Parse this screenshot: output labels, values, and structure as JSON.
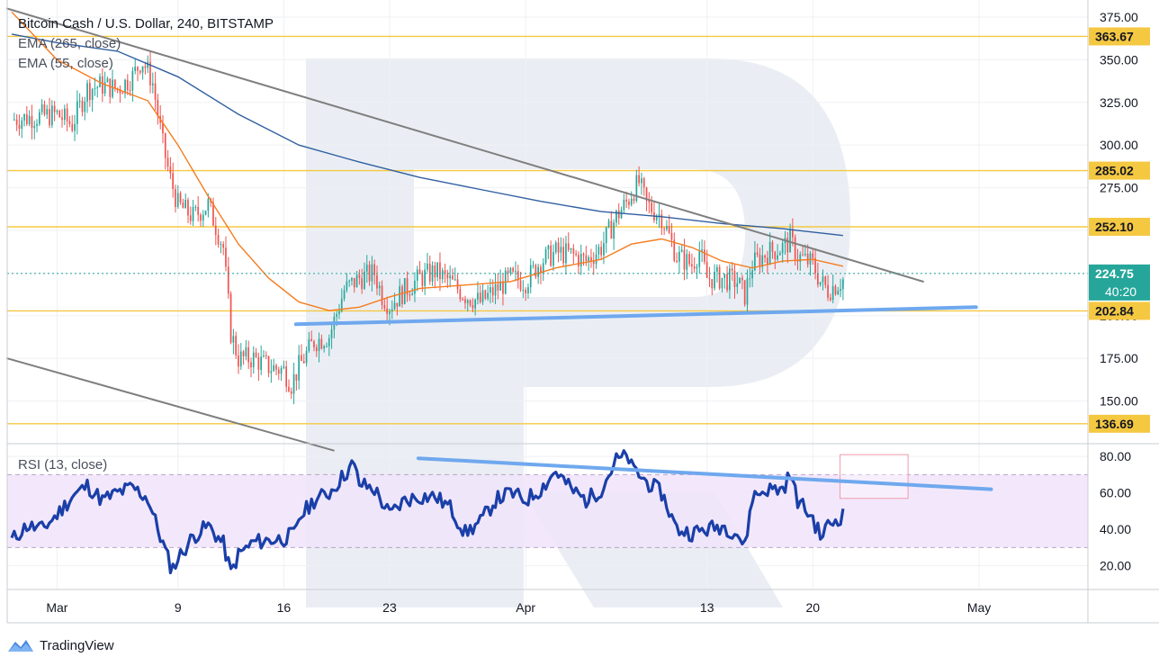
{
  "legend": {
    "title": "Bitcoin Cash / U.S. Dollar, 240, BITSTAMP",
    "ema_slow": "EMA (265, close)",
    "ema_fast": "EMA (55, close)",
    "rsi": "RSI (13, close)"
  },
  "brand": {
    "name": "TradingView"
  },
  "colors": {
    "up": "#26a69a",
    "down": "#ef5350",
    "ema_fast": "#f57c1f",
    "ema_slow": "#2f5fa0",
    "level": "#f5c842",
    "trend": "#7f7f7f",
    "support": "#6fa8ee",
    "rsi": "#1a3fa8",
    "rsi_band": "#f1e4fa",
    "price_tag": "#26a69a",
    "watermark": "#e6ebf2"
  },
  "chart_data": [
    {
      "type": "candlestick",
      "title": "Bitcoin Cash / U.S. Dollar, 240, BITSTAMP",
      "ylim": [
        125,
        385
      ],
      "y_ticks": [
        150,
        175,
        200,
        225,
        250,
        275,
        300,
        325,
        350,
        375
      ],
      "y_tick_labels": [
        "150.00",
        "175.00",
        "200.00",
        "225.00",
        "250.00",
        "275.00",
        "300.00",
        "325.00",
        "350.00",
        "375.00"
      ],
      "x_ticks": [
        {
          "day": 0,
          "label": "Mar"
        },
        {
          "day": 8,
          "label": "9"
        },
        {
          "day": 15,
          "label": "16"
        },
        {
          "day": 22,
          "label": "23"
        },
        {
          "day": 31,
          "label": "Apr"
        },
        {
          "day": 43,
          "label": "13"
        },
        {
          "day": 50,
          "label": "20"
        },
        {
          "day": 61,
          "label": "May"
        }
      ],
      "xlim": [
        -3.3,
        68.2
      ],
      "close_path": [
        [
          -3,
          315
        ],
        [
          0,
          318
        ],
        [
          1,
          312
        ],
        [
          2,
          333
        ],
        [
          3,
          335
        ],
        [
          4,
          333
        ],
        [
          5,
          340
        ],
        [
          5.6,
          350
        ],
        [
          6.3,
          338
        ],
        [
          7,
          300
        ],
        [
          7.5,
          280
        ],
        [
          8,
          265
        ],
        [
          9,
          258
        ],
        [
          10,
          265
        ],
        [
          11,
          240
        ],
        [
          11.5,
          190
        ],
        [
          12,
          175
        ],
        [
          13,
          175
        ],
        [
          14,
          170
        ],
        [
          15,
          168
        ],
        [
          15.5,
          160
        ],
        [
          16,
          170
        ],
        [
          17,
          185
        ],
        [
          18,
          188
        ],
        [
          19,
          215
        ],
        [
          20,
          222
        ],
        [
          21,
          225
        ],
        [
          21.5,
          212
        ],
        [
          22,
          206
        ],
        [
          23,
          215
        ],
        [
          24,
          222
        ],
        [
          25,
          226
        ],
        [
          26,
          220
        ],
        [
          27,
          212
        ],
        [
          28,
          208
        ],
        [
          29,
          215
        ],
        [
          30,
          222
        ],
        [
          31,
          220
        ],
        [
          32,
          232
        ],
        [
          33,
          237
        ],
        [
          34,
          236
        ],
        [
          35,
          232
        ],
        [
          36,
          240
        ],
        [
          37,
          258
        ],
        [
          37.8,
          268
        ],
        [
          38,
          272
        ],
        [
          38.5,
          278
        ],
        [
          39,
          265
        ],
        [
          40,
          258
        ],
        [
          41,
          235
        ],
        [
          42,
          230
        ],
        [
          42.5,
          238
        ],
        [
          43,
          222
        ],
        [
          44,
          222
        ],
        [
          45,
          220
        ],
        [
          45.5,
          212
        ],
        [
          46,
          230
        ],
        [
          47,
          237
        ],
        [
          48,
          240
        ],
        [
          48.5,
          244
        ],
        [
          49,
          235
        ],
        [
          50,
          230
        ],
        [
          50.5,
          220
        ],
        [
          51,
          215
        ],
        [
          52,
          221
        ]
      ],
      "close_path_note": "piecewise-linear close price path by day index, sampled to 6 candles per day",
      "ema_fast_path": [
        [
          -3,
          378
        ],
        [
          0,
          350
        ],
        [
          3,
          336
        ],
        [
          6,
          326
        ],
        [
          8,
          300
        ],
        [
          10,
          270
        ],
        [
          12,
          242
        ],
        [
          14,
          222
        ],
        [
          16,
          208
        ],
        [
          18,
          203
        ],
        [
          20,
          205
        ],
        [
          22,
          211
        ],
        [
          24,
          216
        ],
        [
          27,
          218
        ],
        [
          30,
          220
        ],
        [
          33,
          228
        ],
        [
          36,
          233
        ],
        [
          38,
          242
        ],
        [
          40,
          245
        ],
        [
          42,
          240
        ],
        [
          44,
          232
        ],
        [
          46,
          228
        ],
        [
          48,
          232
        ],
        [
          50,
          233
        ],
        [
          52,
          229
        ]
      ],
      "ema_slow_path": [
        [
          -3,
          365
        ],
        [
          0,
          360
        ],
        [
          4,
          355
        ],
        [
          8,
          340
        ],
        [
          12,
          318
        ],
        [
          16,
          300
        ],
        [
          20,
          290
        ],
        [
          24,
          281
        ],
        [
          28,
          274
        ],
        [
          32,
          267
        ],
        [
          36,
          261
        ],
        [
          40,
          258
        ],
        [
          44,
          254
        ],
        [
          48,
          251
        ],
        [
          52,
          247
        ]
      ],
      "levels": [
        {
          "value": 363.67,
          "label": "363.67",
          "color": "#f5c842"
        },
        {
          "value": 285.02,
          "label": "285.02",
          "color": "#f5c842"
        },
        {
          "value": 252.1,
          "label": "252.10",
          "color": "#f5c842"
        },
        {
          "value": 202.84,
          "label": "202.84",
          "color": "#f5c842"
        },
        {
          "value": 136.69,
          "label": "136.69",
          "color": "#f5c842"
        }
      ],
      "current_price": {
        "value": 224.75,
        "label": "224.75",
        "countdown": "40:20"
      },
      "trend_lines": [
        {
          "name": "upper-trend-line",
          "from": [
            -3.3,
            380
          ],
          "to": [
            57.3,
            220
          ],
          "color": "#7f7f7f"
        },
        {
          "name": "lower-trend-line",
          "from": [
            -3.3,
            175
          ],
          "to": [
            18.3,
            121
          ],
          "color": "#7f7f7f"
        },
        {
          "name": "support-line",
          "from": [
            15.8,
            195
          ],
          "to": [
            60.8,
            205
          ],
          "color": "#6fa8ee"
        }
      ]
    },
    {
      "type": "line",
      "title": "RSI (13, close)",
      "ylim": [
        7,
        87
      ],
      "y_ticks": [
        20,
        40,
        60,
        80
      ],
      "y_tick_labels": [
        "20.00",
        "40.00",
        "60.00",
        "80.00"
      ],
      "band": [
        30,
        70
      ],
      "series": [
        {
          "name": "RSI",
          "path": [
            [
              -3,
              34
            ],
            [
              -2,
              42
            ],
            [
              -1,
              40
            ],
            [
              0,
              48
            ],
            [
              1,
              58
            ],
            [
              2,
              64
            ],
            [
              3,
              56
            ],
            [
              4,
              60
            ],
            [
              5,
              63
            ],
            [
              6,
              57
            ],
            [
              7,
              32
            ],
            [
              7.6,
              18
            ],
            [
              8,
              24
            ],
            [
              9,
              36
            ],
            [
              10,
              42
            ],
            [
              11,
              32
            ],
            [
              11.5,
              16
            ],
            [
              12,
              26
            ],
            [
              13,
              33
            ],
            [
              14,
              34
            ],
            [
              15,
              35
            ],
            [
              15.8,
              38
            ],
            [
              16,
              46
            ],
            [
              17,
              56
            ],
            [
              18,
              60
            ],
            [
              19,
              70
            ],
            [
              19.6,
              76
            ],
            [
              20,
              65
            ],
            [
              21,
              62
            ],
            [
              22,
              48
            ],
            [
              23,
              56
            ],
            [
              24,
              58
            ],
            [
              25,
              58
            ],
            [
              26,
              52
            ],
            [
              27,
              38
            ],
            [
              28,
              44
            ],
            [
              29,
              56
            ],
            [
              30,
              60
            ],
            [
              31,
              56
            ],
            [
              32,
              62
            ],
            [
              33,
              72
            ],
            [
              34,
              62
            ],
            [
              35,
              56
            ],
            [
              36,
              62
            ],
            [
              37,
              78
            ],
            [
              37.8,
              80
            ],
            [
              38,
              74
            ],
            [
              39,
              66
            ],
            [
              40,
              60
            ],
            [
              41,
              40
            ],
            [
              42,
              38
            ],
            [
              43,
              40
            ],
            [
              44,
              42
            ],
            [
              45,
              38
            ],
            [
              45.5,
              30
            ],
            [
              46,
              58
            ],
            [
              47,
              62
            ],
            [
              48,
              62
            ],
            [
              48.5,
              70
            ],
            [
              49,
              56
            ],
            [
              50,
              46
            ],
            [
              50.5,
              36
            ],
            [
              51,
              42
            ],
            [
              52,
              48
            ]
          ]
        }
      ],
      "trend_line": {
        "from": [
          23.9,
          79
        ],
        "to": [
          61.8,
          62
        ],
        "color": "#6fa8ee"
      },
      "target_box": {
        "day_from": 51.8,
        "day_to": 56.3,
        "from": 57,
        "to": 81,
        "color": "#f19aae"
      }
    }
  ]
}
